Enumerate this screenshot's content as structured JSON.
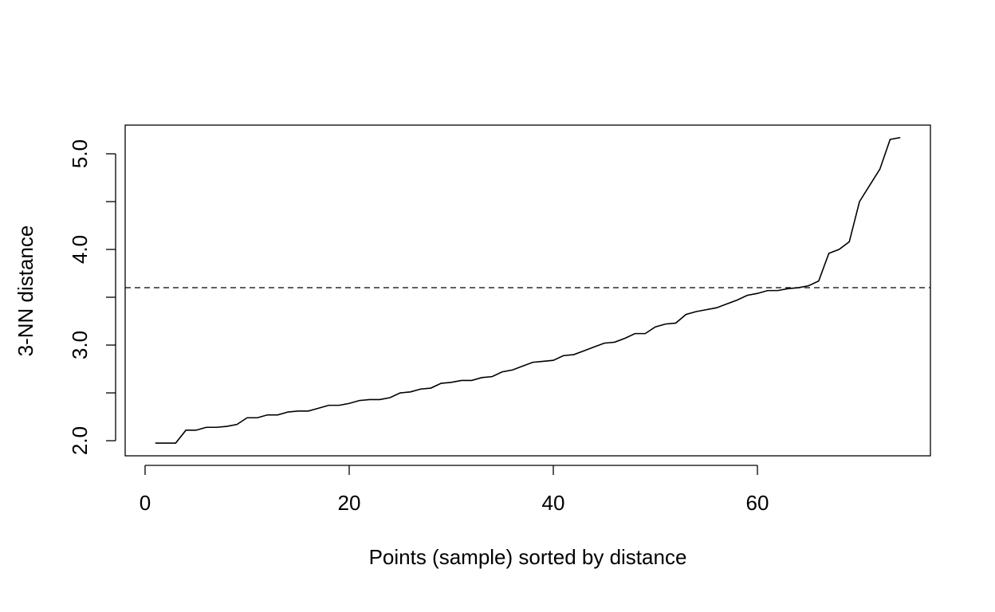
{
  "chart_data": {
    "type": "line",
    "xlabel": "Points (sample) sorted by distance",
    "ylabel": "3-NN distance",
    "x": [
      1,
      2,
      3,
      4,
      5,
      6,
      7,
      8,
      9,
      10,
      11,
      12,
      13,
      14,
      15,
      16,
      17,
      18,
      19,
      20,
      21,
      22,
      23,
      24,
      25,
      26,
      27,
      28,
      29,
      30,
      31,
      32,
      33,
      34,
      35,
      36,
      37,
      38,
      39,
      40,
      41,
      42,
      43,
      44,
      45,
      46,
      47,
      48,
      49,
      50,
      51,
      52,
      53,
      54,
      55,
      56,
      57,
      58,
      59,
      60,
      61,
      62,
      63,
      64,
      65,
      66,
      67,
      68,
      69,
      70,
      71,
      72,
      73,
      74
    ],
    "values": [
      1.975,
      1.975,
      1.975,
      2.11,
      2.11,
      2.14,
      2.14,
      2.15,
      2.17,
      2.24,
      2.24,
      2.27,
      2.27,
      2.3,
      2.31,
      2.31,
      2.34,
      2.37,
      2.37,
      2.39,
      2.42,
      2.43,
      2.43,
      2.45,
      2.5,
      2.51,
      2.54,
      2.55,
      2.6,
      2.61,
      2.63,
      2.63,
      2.66,
      2.67,
      2.72,
      2.74,
      2.78,
      2.82,
      2.83,
      2.84,
      2.89,
      2.9,
      2.94,
      2.98,
      3.02,
      3.03,
      3.07,
      3.12,
      3.12,
      3.19,
      3.22,
      3.23,
      3.32,
      3.35,
      3.37,
      3.39,
      3.43,
      3.47,
      3.52,
      3.54,
      3.57,
      3.57,
      3.59,
      3.6,
      3.62,
      3.67,
      3.96,
      4.0,
      4.08,
      4.5,
      4.67,
      4.84,
      5.15,
      5.17
    ],
    "color": "#000000",
    "hline": 3.6,
    "xlim": [
      -1.95,
      76.95
    ],
    "ylim": [
      1.842,
      5.3
    ],
    "xticks": [
      0,
      20,
      40,
      60
    ],
    "yticks": [
      {
        "value": 2,
        "label": "2.0"
      },
      {
        "value": 3,
        "label": "3.0"
      },
      {
        "value": 4,
        "label": "4.0"
      },
      {
        "value": 5,
        "label": "5.0"
      }
    ],
    "yminor_ticks": [
      2.5,
      3.5,
      4.5
    ],
    "grid": false
  }
}
